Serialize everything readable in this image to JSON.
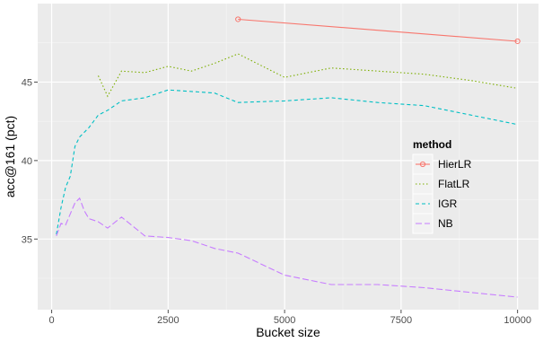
{
  "chart_data": {
    "type": "line",
    "xlabel": "Bucket size",
    "ylabel": "acc@161 (pct)",
    "xlim": [
      -300,
      10450
    ],
    "ylim": [
      30.5,
      50.0
    ],
    "x_ticks": [
      0,
      2500,
      5000,
      7500,
      10000
    ],
    "x_tick_labels": [
      "0",
      "2500",
      "5000",
      "7500",
      "10000"
    ],
    "y_ticks": [
      35,
      40,
      45
    ],
    "y_tick_labels": [
      "35",
      "40",
      "45"
    ],
    "grid": true,
    "background": "#ebebeb",
    "legend": {
      "title": "method",
      "placement": "right"
    },
    "series": [
      {
        "name": "HierLR",
        "color": "#f8766d",
        "dash": "solid",
        "markers": true,
        "x": [
          4000,
          10000
        ],
        "y": [
          49.0,
          47.6
        ]
      },
      {
        "name": "FlatLR",
        "color": "#7cae00",
        "dash": "dotted",
        "markers": false,
        "x": [
          1000,
          1200,
          1500,
          2000,
          2500,
          3000,
          3500,
          4000,
          5000,
          6000,
          7000,
          8000,
          9000,
          10000
        ],
        "y": [
          45.4,
          44.1,
          45.7,
          45.6,
          46.0,
          45.7,
          46.2,
          46.8,
          45.3,
          45.9,
          45.7,
          45.5,
          45.1,
          44.6
        ]
      },
      {
        "name": "IGR",
        "color": "#00bfc4",
        "dash": "dashed",
        "markers": false,
        "x": [
          100,
          200,
          300,
          400,
          500,
          600,
          700,
          800,
          900,
          1000,
          1200,
          1500,
          2000,
          2500,
          3000,
          3500,
          4000,
          5000,
          6000,
          7000,
          8000,
          9000,
          10000
        ],
        "y": [
          35.3,
          37.0,
          38.3,
          39.0,
          40.9,
          41.5,
          41.8,
          42.1,
          42.5,
          42.9,
          43.2,
          43.8,
          44.0,
          44.5,
          44.4,
          44.3,
          43.7,
          43.8,
          44.0,
          43.7,
          43.5,
          42.9,
          42.3
        ]
      },
      {
        "name": "NB",
        "color": "#c77cff",
        "dash": "longdash",
        "markers": false,
        "x": [
          100,
          200,
          300,
          400,
          500,
          600,
          700,
          800,
          900,
          1000,
          1200,
          1500,
          2000,
          2500,
          3000,
          3500,
          4000,
          5000,
          6000,
          7000,
          8000,
          9000,
          10000
        ],
        "y": [
          35.2,
          36.0,
          35.9,
          36.6,
          37.3,
          37.6,
          36.8,
          36.3,
          36.2,
          36.1,
          35.7,
          36.4,
          35.2,
          35.1,
          34.9,
          34.4,
          34.1,
          32.7,
          32.1,
          32.1,
          31.9,
          31.6,
          31.3
        ]
      }
    ]
  }
}
